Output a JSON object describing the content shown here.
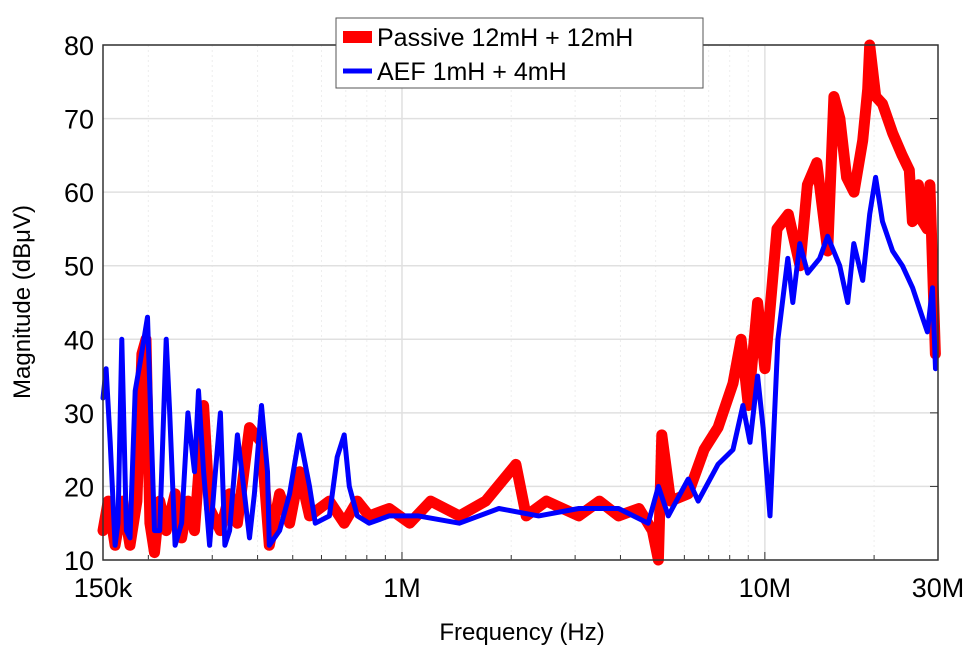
{
  "chart_data": {
    "type": "line",
    "title": "",
    "xlabel": "Frequency (Hz)",
    "ylabel": "Magnitude (dBμV)",
    "x_scale": "log",
    "x_unit_of_values": "MHz",
    "xlim": [
      0.15,
      30
    ],
    "ylim": [
      10,
      80
    ],
    "x_ticks": [
      {
        "value": 0.15,
        "label": "150k"
      },
      {
        "value": 1,
        "label": "1M"
      },
      {
        "value": 10,
        "label": "10M"
      },
      {
        "value": 30,
        "label": "30M"
      }
    ],
    "y_ticks": [
      {
        "value": 10,
        "label": "10"
      },
      {
        "value": 20,
        "label": "20"
      },
      {
        "value": 30,
        "label": "30"
      },
      {
        "value": 40,
        "label": "40"
      },
      {
        "value": 50,
        "label": "50"
      },
      {
        "value": 60,
        "label": "60"
      },
      {
        "value": 70,
        "label": "70"
      },
      {
        "value": 80,
        "label": "80"
      }
    ],
    "grid": true,
    "legend_position": "top-center",
    "series": [
      {
        "name": "Passive 12mH + 12mH",
        "color": "#ff0000",
        "points": [
          [
            0.15,
            14
          ],
          [
            0.155,
            18
          ],
          [
            0.162,
            12
          ],
          [
            0.17,
            18
          ],
          [
            0.178,
            12
          ],
          [
            0.186,
            18
          ],
          [
            0.192,
            38
          ],
          [
            0.197,
            40
          ],
          [
            0.202,
            15
          ],
          [
            0.208,
            11
          ],
          [
            0.215,
            18
          ],
          [
            0.224,
            14
          ],
          [
            0.237,
            19
          ],
          [
            0.247,
            13
          ],
          [
            0.257,
            18
          ],
          [
            0.268,
            14
          ],
          [
            0.284,
            31
          ],
          [
            0.295,
            17
          ],
          [
            0.316,
            14
          ],
          [
            0.335,
            19
          ],
          [
            0.352,
            15
          ],
          [
            0.38,
            28
          ],
          [
            0.41,
            26
          ],
          [
            0.431,
            12
          ],
          [
            0.46,
            19
          ],
          [
            0.49,
            15
          ],
          [
            0.522,
            22
          ],
          [
            0.556,
            16
          ],
          [
            0.631,
            18
          ],
          [
            0.693,
            15
          ],
          [
            0.753,
            18
          ],
          [
            0.812,
            16
          ],
          [
            0.922,
            17
          ],
          [
            1.05,
            15
          ],
          [
            1.2,
            18
          ],
          [
            1.44,
            16
          ],
          [
            1.7,
            18
          ],
          [
            2.06,
            23
          ],
          [
            2.2,
            16
          ],
          [
            2.5,
            18
          ],
          [
            3.07,
            16
          ],
          [
            3.5,
            18
          ],
          [
            3.95,
            16
          ],
          [
            4.5,
            17
          ],
          [
            4.9,
            14
          ],
          [
            5.09,
            10
          ],
          [
            5.2,
            27
          ],
          [
            5.5,
            18
          ],
          [
            6.15,
            19
          ],
          [
            6.8,
            25
          ],
          [
            7.43,
            28
          ],
          [
            8.17,
            34
          ],
          [
            8.6,
            40
          ],
          [
            9.0,
            31
          ],
          [
            9.55,
            45
          ],
          [
            10.0,
            36
          ],
          [
            10.8,
            55
          ],
          [
            11.6,
            57
          ],
          [
            12.5,
            50
          ],
          [
            13.1,
            61
          ],
          [
            13.9,
            64
          ],
          [
            14.9,
            52
          ],
          [
            15.5,
            73
          ],
          [
            16.1,
            70
          ],
          [
            16.8,
            62
          ],
          [
            17.6,
            60
          ],
          [
            18.6,
            67
          ],
          [
            19.2,
            74
          ],
          [
            19.45,
            80
          ],
          [
            20.2,
            73
          ],
          [
            21.1,
            72
          ],
          [
            22.5,
            68
          ],
          [
            23.9,
            65
          ],
          [
            25.0,
            63
          ],
          [
            25.5,
            56
          ],
          [
            26.5,
            61
          ],
          [
            27.2,
            56
          ],
          [
            28.0,
            55
          ],
          [
            28.5,
            61
          ],
          [
            29.5,
            38
          ]
        ]
      },
      {
        "name": "AEF 1mH + 4mH",
        "color": "#0000ff",
        "points": [
          [
            0.15,
            32
          ],
          [
            0.153,
            36
          ],
          [
            0.157,
            26
          ],
          [
            0.162,
            12
          ],
          [
            0.165,
            15
          ],
          [
            0.169,
            40
          ],
          [
            0.174,
            14
          ],
          [
            0.178,
            13
          ],
          [
            0.184,
            33
          ],
          [
            0.19,
            37
          ],
          [
            0.199,
            43
          ],
          [
            0.208,
            14
          ],
          [
            0.215,
            14
          ],
          [
            0.224,
            40
          ],
          [
            0.229,
            30
          ],
          [
            0.237,
            12
          ],
          [
            0.247,
            15
          ],
          [
            0.257,
            30
          ],
          [
            0.268,
            22
          ],
          [
            0.275,
            33
          ],
          [
            0.284,
            22
          ],
          [
            0.295,
            12
          ],
          [
            0.305,
            21
          ],
          [
            0.316,
            30
          ],
          [
            0.325,
            12
          ],
          [
            0.335,
            14
          ],
          [
            0.352,
            27
          ],
          [
            0.366,
            20
          ],
          [
            0.38,
            13
          ],
          [
            0.392,
            19
          ],
          [
            0.41,
            31
          ],
          [
            0.426,
            22
          ],
          [
            0.431,
            12
          ],
          [
            0.46,
            14
          ],
          [
            0.49,
            19
          ],
          [
            0.522,
            27
          ],
          [
            0.556,
            20
          ],
          [
            0.577,
            15
          ],
          [
            0.631,
            16
          ],
          [
            0.663,
            24
          ],
          [
            0.693,
            27
          ],
          [
            0.716,
            20
          ],
          [
            0.753,
            16
          ],
          [
            0.812,
            15
          ],
          [
            0.922,
            16
          ],
          [
            1.11,
            16
          ],
          [
            1.44,
            15
          ],
          [
            1.85,
            17
          ],
          [
            2.38,
            16
          ],
          [
            3.07,
            17
          ],
          [
            3.95,
            17
          ],
          [
            4.77,
            15
          ],
          [
            5.09,
            20
          ],
          [
            5.42,
            16
          ],
          [
            6.15,
            21
          ],
          [
            6.55,
            18
          ],
          [
            7.43,
            23
          ],
          [
            8.17,
            25
          ],
          [
            8.7,
            31
          ],
          [
            9.1,
            26
          ],
          [
            9.55,
            35
          ],
          [
            9.89,
            28
          ],
          [
            10.33,
            16
          ],
          [
            10.86,
            40
          ],
          [
            11.57,
            51
          ],
          [
            11.94,
            45
          ],
          [
            12.48,
            53
          ],
          [
            13.12,
            49
          ],
          [
            14.16,
            51
          ],
          [
            14.89,
            54
          ],
          [
            16.08,
            50
          ],
          [
            16.91,
            45
          ],
          [
            17.58,
            53
          ],
          [
            18.6,
            48
          ],
          [
            19.45,
            57
          ],
          [
            20.19,
            62
          ],
          [
            21.1,
            56
          ],
          [
            22.49,
            52
          ],
          [
            23.94,
            50
          ],
          [
            25.53,
            47
          ],
          [
            27.17,
            43
          ],
          [
            28.05,
            41
          ],
          [
            28.98,
            47
          ],
          [
            29.52,
            36
          ]
        ]
      }
    ]
  }
}
